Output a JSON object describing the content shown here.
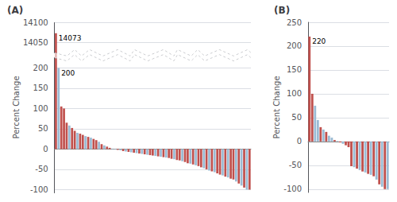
{
  "chart_data": [
    {
      "type": "bar",
      "title": "(A)",
      "ylabel": "Percent Change",
      "values": [
        14073,
        200,
        105,
        100,
        65,
        58,
        52,
        45,
        40,
        38,
        35,
        32,
        30,
        28,
        25,
        22,
        18,
        12,
        9,
        6,
        3,
        1,
        -1,
        -2,
        -3,
        -5,
        -6,
        -7,
        -8,
        -9,
        -10,
        -11,
        -12,
        -13,
        -14,
        -15,
        -16,
        -17,
        -18,
        -19,
        -20,
        -21,
        -22,
        -24,
        -25,
        -27,
        -28,
        -30,
        -32,
        -35,
        -36,
        -38,
        -40,
        -42,
        -45,
        -47,
        -50,
        -53,
        -55,
        -57,
        -60,
        -63,
        -65,
        -68,
        -70,
        -73,
        -75,
        -80,
        -85,
        -90,
        -95,
        -100,
        -100
      ],
      "colors": [
        "#c0504d",
        "#9bbbd4",
        "#c0504d",
        "#c0504d",
        "#c0504d",
        "#9bbbd4",
        "#c0504d",
        "#c0504d",
        "#9bbbd4",
        "#c0504d",
        "#c0504d",
        "#9bbbd4",
        "#c0504d",
        "#9bbbd4",
        "#c0504d",
        "#c0504d",
        "#9bbbd4",
        "#c0504d",
        "#9bbbd4",
        "#c0504d",
        "#c0504d",
        "#9bbbd4",
        "#9bbbd4",
        "#c0504d",
        "#9bbbd4",
        "#c0504d",
        "#9bbbd4",
        "#c0504d",
        "#9bbbd4",
        "#c0504d",
        "#9bbbd4",
        "#c0504d",
        "#9bbbd4",
        "#c0504d",
        "#9bbbd4",
        "#c0504d",
        "#c0504d",
        "#9bbbd4",
        "#c0504d",
        "#9bbbd4",
        "#c0504d",
        "#9bbbd4",
        "#c0504d",
        "#c0504d",
        "#9bbbd4",
        "#c0504d",
        "#c0504d",
        "#9bbbd4",
        "#c0504d",
        "#c0504d",
        "#9bbbd4",
        "#c0504d",
        "#9bbbd4",
        "#c0504d",
        "#c0504d",
        "#9bbbd4",
        "#c0504d",
        "#9bbbd4",
        "#c0504d",
        "#9bbbd4",
        "#c0504d",
        "#c0504d",
        "#9bbbd4",
        "#c0504d",
        "#9bbbd4",
        "#c0504d",
        "#c0504d",
        "#9bbbd4",
        "#c0504d",
        "#9bbbd4",
        "#c0504d",
        "#9bbbd4",
        "#c0504d"
      ],
      "annotations": [
        "14073",
        "200"
      ],
      "ylim": [
        -107,
        14100
      ],
      "yticks": [
        -100,
        -50,
        0,
        50,
        100,
        150,
        200,
        14050,
        14100
      ],
      "grid": true,
      "tick_labels": "y"
    },
    {
      "type": "bar",
      "title": "(B)",
      "ylabel": "Percent Change",
      "values": [
        220,
        100,
        75,
        45,
        30,
        25,
        20,
        12,
        8,
        3,
        1,
        -2,
        -5,
        -8,
        -12,
        -52,
        -54,
        -57,
        -60,
        -63,
        -65,
        -68,
        -70,
        -73,
        -80,
        -90,
        -95,
        -100,
        -100
      ],
      "colors": [
        "#c0504d",
        "#c0504d",
        "#9bbbd4",
        "#9bbbd4",
        "#c0504d",
        "#9bbbd4",
        "#c0504d",
        "#9bbbd4",
        "#9bbbd4",
        "#c0504d",
        "#9bbbd4",
        "#c0504d",
        "#9bbbd4",
        "#c0504d",
        "#c0504d",
        "#c0504d",
        "#9bbbd4",
        "#c0504d",
        "#9bbbd4",
        "#c0504d",
        "#9bbbd4",
        "#c0504d",
        "#9bbbd4",
        "#c0504d",
        "#9bbbd4",
        "#c0504d",
        "#9bbbd4",
        "#c0504d",
        "#9bbbd4"
      ],
      "annotations": [
        "220"
      ],
      "ylim": [
        -107,
        250
      ],
      "yticks": [
        -100,
        -50,
        0,
        50,
        100,
        150,
        200,
        250
      ],
      "grid": true,
      "tick_labels": "y"
    }
  ]
}
